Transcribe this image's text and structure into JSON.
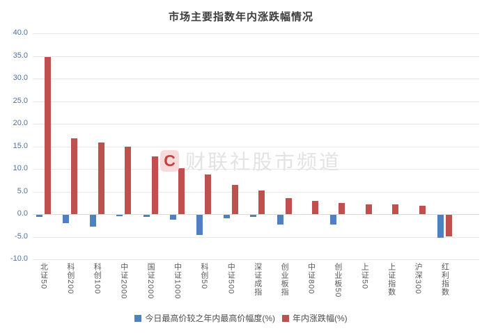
{
  "title": "市场主要指数年内涨跌幅情况",
  "watermark": {
    "logo_letter": "C",
    "text": "财联社股市频道"
  },
  "colors": {
    "series_blue": "#4f81bd",
    "series_red": "#c0504d",
    "y_axis_label": "#4a72a3",
    "category_label": "#595959",
    "title_text": "#3d3d3d",
    "gridline": "#e7e7e7"
  },
  "chart_data": {
    "type": "bar",
    "title": "市场主要指数年内涨跌幅情况",
    "categories": [
      "北证50",
      "科创200",
      "科创100",
      "中证2000",
      "国证2000",
      "中证1000",
      "科创50",
      "中证500",
      "深证成指",
      "创业板指",
      "中证800",
      "创业板50",
      "上证50",
      "上证指数",
      "沪深300",
      "红利指数"
    ],
    "series": [
      {
        "name": "今日最高价较之年内最高价幅度(%)",
        "color": "#4f81bd",
        "values": [
          -0.5,
          -1.8,
          -2.6,
          -0.3,
          -0.5,
          -1.0,
          -4.5,
          -0.8,
          -0.4,
          -2.1,
          0,
          -2.2,
          0,
          0,
          0,
          -5.0
        ]
      },
      {
        "name": "年内涨跌幅(%)",
        "color": "#c0504d",
        "values": [
          34.8,
          16.8,
          15.8,
          14.9,
          12.7,
          10.2,
          8.8,
          6.4,
          5.3,
          3.6,
          3.0,
          2.4,
          2.2,
          2.1,
          1.8,
          -4.7
        ]
      }
    ],
    "ylim": [
      -10,
      40
    ],
    "ytick_step": 5,
    "yticks": [
      "40.0",
      "35.0",
      "30.0",
      "25.0",
      "20.0",
      "15.0",
      "10.0",
      "5.0",
      "0.0",
      "-5.0",
      "-10.0"
    ],
    "grid": true,
    "legend_position": "bottom"
  }
}
